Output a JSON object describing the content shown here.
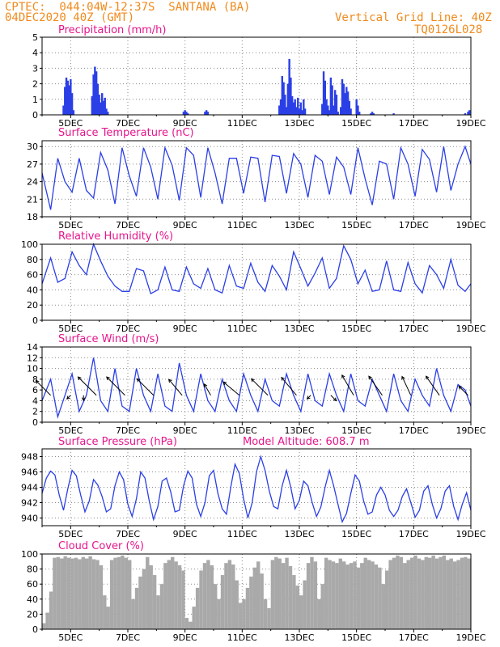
{
  "header": {
    "line1": "CPTEC:  044:04W-12:37S  SANTANA (BA)",
    "line2": "04DEC2020 40Z (GMT)",
    "right1": "Vertical Grid Line: 40Z",
    "right2": "TQ0126L028"
  },
  "x_ticks": [
    "5DEC",
    "7DEC",
    "9DEC",
    "11DEC",
    "13DEC",
    "15DEC",
    "17DEC",
    "19DEC"
  ],
  "colors": {
    "line": "#2b3fe6",
    "bar": "#2b3fe6",
    "cloud": "#a9a9a9",
    "title": "#e6158c",
    "header": "#f08a1c",
    "grid": "#8a8a8a"
  },
  "chart_data": [
    {
      "id": "precip",
      "type": "bar",
      "title": "Precipitation (mm/h)",
      "ylim": [
        0,
        5
      ],
      "yticks": [
        0,
        1,
        2,
        3,
        4,
        5
      ],
      "x_unit": "days since 04DEC2020 00Z",
      "xlim": [
        0,
        15
      ],
      "x": [
        0.75,
        0.8,
        0.85,
        0.9,
        0.95,
        1.0,
        1.05,
        1.1,
        1.75,
        1.8,
        1.85,
        1.9,
        1.95,
        2.0,
        2.05,
        2.1,
        2.15,
        2.2,
        2.25,
        2.3,
        4.95,
        5.0,
        5.05,
        5.1,
        5.7,
        5.75,
        5.8,
        8.3,
        8.35,
        8.4,
        8.45,
        8.5,
        8.55,
        8.6,
        8.65,
        8.7,
        8.75,
        8.8,
        8.85,
        8.9,
        8.95,
        9.0,
        9.05,
        9.1,
        9.15,
        9.2,
        9.8,
        9.85,
        9.9,
        9.95,
        10.0,
        10.05,
        10.1,
        10.15,
        10.2,
        10.25,
        10.3,
        10.35,
        10.45,
        10.5,
        10.55,
        10.6,
        10.65,
        10.7,
        10.75,
        10.8,
        11.0,
        11.05,
        11.1,
        11.5,
        11.55,
        11.6,
        12.3,
        14.8,
        14.9,
        14.95
      ],
      "values": [
        0.6,
        1.8,
        2.4,
        2.2,
        1.9,
        2.3,
        1.4,
        0.3,
        1.2,
        2.6,
        3.1,
        2.8,
        2.0,
        1.3,
        0.8,
        1.4,
        0.9,
        1.1,
        0.4,
        0.2,
        0.2,
        0.3,
        0.2,
        0.1,
        0.2,
        0.3,
        0.2,
        0.6,
        1.0,
        2.5,
        2.1,
        1.3,
        0.5,
        2.0,
        3.6,
        2.4,
        1.2,
        0.8,
        1.0,
        0.5,
        1.1,
        0.4,
        0.8,
        0.3,
        1.0,
        0.4,
        0.7,
        2.8,
        2.2,
        1.0,
        0.6,
        0.3,
        2.4,
        1.9,
        0.6,
        1.6,
        1.3,
        0.2,
        0.5,
        2.3,
        2.0,
        1.4,
        1.8,
        1.5,
        0.9,
        0.4,
        1.0,
        0.6,
        0.2,
        0.1,
        0.2,
        0.1,
        0.1,
        0.1,
        0.2,
        0.3
      ]
    },
    {
      "id": "temp",
      "type": "line",
      "title": "Surface Temperature (nC)",
      "ylim": [
        18,
        31
      ],
      "yticks": [
        18,
        21,
        24,
        27,
        30
      ],
      "x_unit": "days since 04DEC2020 00Z",
      "xlim": [
        0,
        15
      ],
      "x": [
        0.0,
        0.3,
        0.55,
        0.8,
        1.05,
        1.3,
        1.55,
        1.8,
        2.05,
        2.3,
        2.55,
        2.8,
        3.05,
        3.3,
        3.55,
        3.8,
        4.05,
        4.3,
        4.55,
        4.8,
        5.05,
        5.3,
        5.55,
        5.8,
        6.05,
        6.3,
        6.55,
        6.8,
        7.05,
        7.3,
        7.55,
        7.8,
        8.05,
        8.3,
        8.55,
        8.8,
        9.05,
        9.3,
        9.55,
        9.8,
        10.05,
        10.3,
        10.55,
        10.8,
        11.05,
        11.3,
        11.55,
        11.8,
        12.05,
        12.3,
        12.55,
        12.8,
        13.05,
        13.3,
        13.55,
        13.8,
        14.05,
        14.3,
        14.55,
        14.8,
        15.0
      ],
      "values": [
        25.5,
        19.2,
        28.0,
        24.0,
        22.2,
        28.0,
        22.5,
        21.2,
        29.0,
        26.0,
        20.2,
        29.8,
        25.0,
        21.5,
        29.8,
        26.5,
        21.0,
        29.8,
        26.8,
        20.8,
        29.8,
        28.5,
        21.3,
        29.8,
        25.5,
        20.2,
        28.0,
        28.0,
        22.0,
        28.2,
        28.0,
        20.5,
        28.5,
        28.3,
        22.0,
        28.8,
        27.0,
        21.3,
        28.5,
        27.5,
        21.8,
        28.2,
        26.5,
        21.8,
        29.8,
        24.5,
        20.0,
        27.5,
        27.0,
        21.0,
        29.8,
        27.0,
        21.5,
        29.5,
        27.8,
        22.2,
        30.0,
        22.5,
        27.0,
        30.0,
        27.0
      ]
    },
    {
      "id": "rh",
      "type": "line",
      "title": "Relative Humidity (%)",
      "ylim": [
        0,
        100
      ],
      "yticks": [
        0,
        20,
        40,
        60,
        80,
        100
      ],
      "x_unit": "days since 04DEC2020 00Z",
      "xlim": [
        0,
        15
      ],
      "x": [
        0.0,
        0.3,
        0.55,
        0.8,
        1.05,
        1.3,
        1.55,
        1.8,
        2.05,
        2.3,
        2.55,
        2.8,
        3.05,
        3.3,
        3.55,
        3.8,
        4.05,
        4.3,
        4.55,
        4.8,
        5.05,
        5.3,
        5.55,
        5.8,
        6.05,
        6.3,
        6.55,
        6.8,
        7.05,
        7.3,
        7.55,
        7.8,
        8.05,
        8.3,
        8.55,
        8.8,
        9.05,
        9.3,
        9.55,
        9.8,
        10.05,
        10.3,
        10.55,
        10.8,
        11.05,
        11.3,
        11.55,
        11.8,
        12.05,
        12.3,
        12.55,
        12.8,
        13.05,
        13.3,
        13.55,
        13.8,
        14.05,
        14.3,
        14.55,
        14.8,
        15.0
      ],
      "values": [
        48,
        82,
        50,
        55,
        90,
        72,
        60,
        100,
        78,
        58,
        45,
        38,
        38,
        68,
        65,
        35,
        40,
        70,
        40,
        38,
        70,
        48,
        42,
        68,
        40,
        36,
        72,
        45,
        42,
        75,
        50,
        38,
        72,
        58,
        40,
        90,
        68,
        45,
        62,
        82,
        42,
        55,
        98,
        80,
        48,
        66,
        38,
        40,
        78,
        40,
        38,
        76,
        48,
        36,
        72,
        60,
        42,
        80,
        46,
        38,
        48
      ]
    },
    {
      "id": "wind",
      "type": "line",
      "title": "Surface Wind (m/s)",
      "ylim": [
        0,
        14
      ],
      "yticks": [
        0,
        2,
        4,
        6,
        8,
        10,
        12,
        14
      ],
      "x_unit": "days since 04DEC2020 00Z",
      "xlim": [
        0,
        15
      ],
      "x": [
        0.0,
        0.3,
        0.55,
        0.8,
        1.05,
        1.3,
        1.55,
        1.8,
        2.05,
        2.3,
        2.55,
        2.8,
        3.05,
        3.3,
        3.55,
        3.8,
        4.05,
        4.3,
        4.55,
        4.8,
        5.05,
        5.3,
        5.55,
        5.8,
        6.05,
        6.3,
        6.55,
        6.8,
        7.05,
        7.3,
        7.55,
        7.8,
        8.05,
        8.3,
        8.55,
        8.8,
        9.05,
        9.3,
        9.55,
        9.8,
        10.05,
        10.3,
        10.55,
        10.8,
        11.05,
        11.3,
        11.55,
        11.8,
        12.05,
        12.3,
        12.55,
        12.8,
        13.05,
        13.3,
        13.55,
        13.8,
        14.05,
        14.3,
        14.55,
        14.8,
        15.0
      ],
      "values": [
        4,
        8,
        1,
        5,
        9,
        2,
        5,
        12,
        4,
        2,
        10,
        3,
        2,
        10,
        5,
        2,
        9,
        3,
        2,
        11,
        5,
        2,
        9,
        4,
        2,
        8,
        4,
        2,
        9,
        5,
        2,
        8,
        4,
        3,
        9,
        5,
        2,
        9,
        4,
        3,
        9,
        5,
        2,
        9,
        4,
        3,
        8,
        5,
        2,
        9,
        4,
        2,
        8,
        5,
        3,
        10,
        5,
        2,
        7,
        6,
        3
      ],
      "barbs": [
        {
          "x": 0.3,
          "dir_deg": 225,
          "speed": 8
        },
        {
          "x": 1.0,
          "dir_deg": 135,
          "speed": 2
        },
        {
          "x": 1.45,
          "dir_deg": 90,
          "speed": 2
        },
        {
          "x": 1.9,
          "dir_deg": 225,
          "speed": 10
        },
        {
          "x": 2.9,
          "dir_deg": 225,
          "speed": 10
        },
        {
          "x": 3.9,
          "dir_deg": 225,
          "speed": 9
        },
        {
          "x": 4.9,
          "dir_deg": 230,
          "speed": 8
        },
        {
          "x": 5.9,
          "dir_deg": 240,
          "speed": 5
        },
        {
          "x": 6.9,
          "dir_deg": 220,
          "speed": 8
        },
        {
          "x": 7.9,
          "dir_deg": 225,
          "speed": 9
        },
        {
          "x": 8.9,
          "dir_deg": 230,
          "speed": 9
        },
        {
          "x": 9.4,
          "dir_deg": 135,
          "speed": 2
        },
        {
          "x": 10.1,
          "dir_deg": 45,
          "speed": 3
        },
        {
          "x": 10.9,
          "dir_deg": 240,
          "speed": 9
        },
        {
          "x": 11.9,
          "dir_deg": 235,
          "speed": 9
        },
        {
          "x": 12.9,
          "dir_deg": 245,
          "speed": 8
        },
        {
          "x": 13.9,
          "dir_deg": 235,
          "speed": 9
        },
        {
          "x": 14.9,
          "dir_deg": 225,
          "speed": 5
        }
      ]
    },
    {
      "id": "pres",
      "type": "line",
      "title": "Surface Pressure (hPa)",
      "annotation": "Model Altitude: 608.7 m",
      "ylim": [
        939,
        949
      ],
      "yticks": [
        940,
        942,
        944,
        946,
        948
      ],
      "x_unit": "days since 04DEC2020 00Z",
      "xlim": [
        0,
        15
      ],
      "x": [
        0.0,
        0.15,
        0.3,
        0.45,
        0.6,
        0.75,
        0.9,
        1.05,
        1.2,
        1.35,
        1.5,
        1.65,
        1.8,
        1.95,
        2.1,
        2.25,
        2.4,
        2.55,
        2.7,
        2.85,
        3.0,
        3.15,
        3.3,
        3.45,
        3.6,
        3.75,
        3.9,
        4.05,
        4.2,
        4.35,
        4.5,
        4.65,
        4.8,
        4.95,
        5.1,
        5.25,
        5.4,
        5.55,
        5.7,
        5.85,
        6.0,
        6.15,
        6.3,
        6.45,
        6.6,
        6.75,
        6.9,
        7.05,
        7.2,
        7.35,
        7.5,
        7.65,
        7.8,
        7.95,
        8.1,
        8.25,
        8.4,
        8.55,
        8.7,
        8.85,
        9.0,
        9.15,
        9.3,
        9.45,
        9.6,
        9.75,
        9.9,
        10.05,
        10.2,
        10.35,
        10.5,
        10.65,
        10.8,
        10.95,
        11.1,
        11.25,
        11.4,
        11.55,
        11.7,
        11.85,
        12.0,
        12.15,
        12.3,
        12.45,
        12.6,
        12.75,
        12.9,
        13.05,
        13.2,
        13.35,
        13.5,
        13.65,
        13.8,
        13.95,
        14.1,
        14.25,
        14.4,
        14.55,
        14.7,
        14.85,
        15.0
      ],
      "values": [
        943.2,
        945.2,
        946.1,
        945.6,
        943.0,
        941.0,
        943.8,
        946.2,
        945.5,
        943.0,
        940.8,
        942.2,
        945.0,
        944.3,
        942.8,
        940.8,
        941.2,
        944.2,
        946.0,
        945.0,
        941.8,
        940.2,
        942.5,
        946.0,
        945.2,
        942.2,
        939.8,
        941.5,
        944.8,
        945.2,
        943.4,
        940.8,
        941.0,
        944.2,
        946.1,
        945.2,
        941.8,
        940.2,
        942.0,
        945.5,
        946.2,
        943.2,
        941.2,
        940.5,
        944.0,
        947.0,
        945.8,
        942.5,
        940.0,
        942.0,
        946.0,
        948.0,
        946.2,
        943.5,
        941.5,
        941.2,
        944.2,
        946.2,
        944.0,
        941.2,
        942.3,
        944.8,
        944.2,
        942.0,
        940.2,
        941.4,
        944.0,
        946.2,
        944.2,
        941.8,
        939.5,
        940.6,
        943.2,
        945.6,
        944.8,
        942.2,
        940.5,
        940.8,
        943.0,
        944.0,
        943.0,
        941.0,
        940.2,
        941.0,
        942.8,
        943.8,
        942.0,
        940.1,
        941.0,
        943.5,
        944.2,
        941.8,
        940.0,
        941.2,
        943.5,
        944.2,
        941.5,
        939.8,
        941.8,
        943.3,
        941.0
      ]
    },
    {
      "id": "cloud",
      "type": "area",
      "title": "Cloud Cover (%)",
      "ylim": [
        0,
        100
      ],
      "yticks": [
        0,
        20,
        40,
        60,
        80,
        100
      ],
      "x_unit": "days since 04DEC2020 00Z",
      "xlim": [
        0,
        15
      ],
      "x": [
        0.0,
        0.125,
        0.25,
        0.375,
        0.5,
        0.625,
        0.75,
        0.875,
        1.0,
        1.125,
        1.25,
        1.375,
        1.5,
        1.625,
        1.75,
        1.875,
        2.0,
        2.125,
        2.25,
        2.375,
        2.5,
        2.625,
        2.75,
        2.875,
        3.0,
        3.125,
        3.25,
        3.375,
        3.5,
        3.625,
        3.75,
        3.875,
        4.0,
        4.125,
        4.25,
        4.375,
        4.5,
        4.625,
        4.75,
        4.875,
        5.0,
        5.125,
        5.25,
        5.375,
        5.5,
        5.625,
        5.75,
        5.875,
        6.0,
        6.125,
        6.25,
        6.375,
        6.5,
        6.625,
        6.75,
        6.875,
        7.0,
        7.125,
        7.25,
        7.375,
        7.5,
        7.625,
        7.75,
        7.875,
        8.0,
        8.125,
        8.25,
        8.375,
        8.5,
        8.625,
        8.75,
        8.875,
        9.0,
        9.125,
        9.25,
        9.375,
        9.5,
        9.625,
        9.75,
        9.875,
        10.0,
        10.125,
        10.25,
        10.375,
        10.5,
        10.625,
        10.75,
        10.875,
        11.0,
        11.125,
        11.25,
        11.375,
        11.5,
        11.625,
        11.75,
        11.875,
        12.0,
        12.125,
        12.25,
        12.375,
        12.5,
        12.625,
        12.75,
        12.875,
        13.0,
        13.125,
        13.25,
        13.375,
        13.5,
        13.625,
        13.75,
        13.875,
        14.0,
        14.125,
        14.25,
        14.375,
        14.5,
        14.625,
        14.75,
        14.875,
        15.0
      ],
      "values": [
        8,
        22,
        50,
        95,
        96,
        94,
        97,
        95,
        94,
        95,
        93,
        96,
        94,
        97,
        93,
        92,
        85,
        45,
        30,
        92,
        95,
        96,
        98,
        95,
        92,
        40,
        55,
        70,
        80,
        96,
        85,
        72,
        45,
        60,
        88,
        92,
        96,
        90,
        85,
        78,
        15,
        10,
        30,
        55,
        78,
        88,
        92,
        85,
        60,
        40,
        72,
        88,
        92,
        86,
        65,
        35,
        40,
        55,
        70,
        82,
        90,
        74,
        40,
        28,
        92,
        96,
        94,
        88,
        95,
        84,
        72,
        58,
        45,
        65,
        88,
        96,
        90,
        40,
        60,
        95,
        92,
        90,
        88,
        94,
        90,
        86,
        88,
        90,
        82,
        88,
        95,
        92,
        90,
        86,
        82,
        60,
        78,
        92,
        95,
        98,
        96,
        88,
        92,
        95,
        98,
        94,
        92,
        96,
        95,
        98,
        94,
        96,
        98,
        92,
        94,
        90,
        92,
        95,
        96,
        94,
        92
      ]
    }
  ]
}
